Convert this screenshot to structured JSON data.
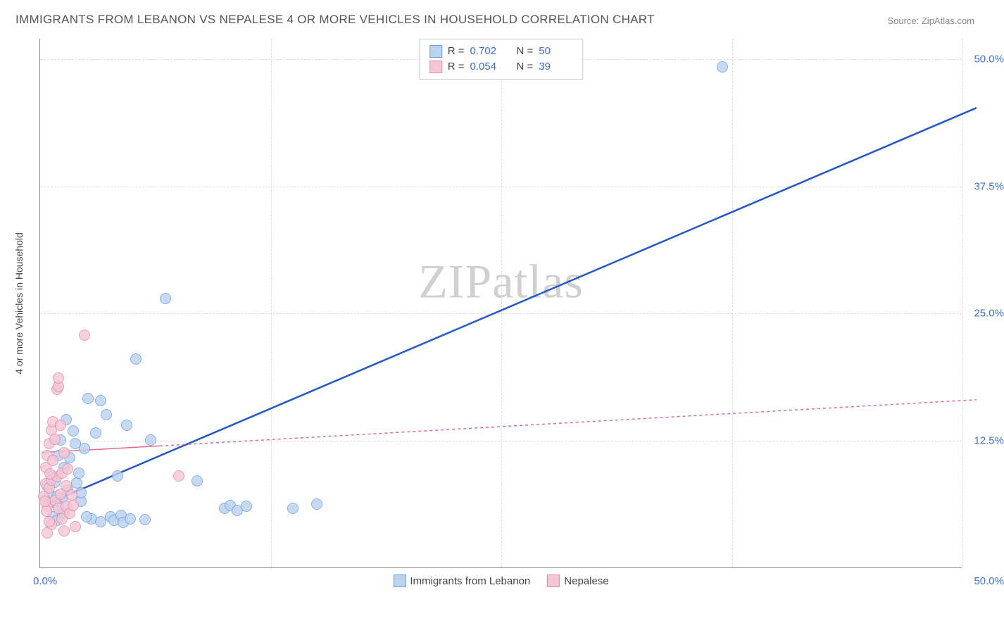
{
  "title": "IMMIGRANTS FROM LEBANON VS NEPALESE 4 OR MORE VEHICLES IN HOUSEHOLD CORRELATION CHART",
  "source": "Source: ZipAtlas.com",
  "watermark_prefix": "ZIP",
  "watermark_suffix": "atlas",
  "ylabel": "4 or more Vehicles in Household",
  "chart": {
    "type": "scatter",
    "xlim": [
      0,
      50
    ],
    "ylim": [
      0,
      52
    ],
    "ytick_values": [
      12.5,
      25.0,
      37.5,
      50.0
    ],
    "ytick_labels": [
      "12.5%",
      "25.0%",
      "37.5%",
      "50.0%"
    ],
    "ytick_color": "#3b6fd6",
    "xtick_left": "0.0%",
    "xtick_right": "50.0%",
    "xtick_color": "#3b6fd6",
    "grid_color": "#dddddd",
    "axis_color": "#888888",
    "background_color": "#ffffff",
    "marker_radius": 8,
    "series": [
      {
        "name": "Immigrants from Lebanon",
        "R": "0.702",
        "N": "50",
        "fill": "#bcd3f0",
        "stroke": "#6a9fde",
        "line_color": "#2158c9",
        "line_width": 2.5,
        "line_dash": "none",
        "line": {
          "x1": 0.3,
          "y1": 6.2,
          "x2": 50.8,
          "y2": 45.2
        },
        "points": [
          [
            0.4,
            8.0
          ],
          [
            0.5,
            7.2
          ],
          [
            0.6,
            9.0
          ],
          [
            0.7,
            6.4
          ],
          [
            0.8,
            8.4
          ],
          [
            0.9,
            7.0
          ],
          [
            1.0,
            11.0
          ],
          [
            1.1,
            12.5
          ],
          [
            1.2,
            6.8
          ],
          [
            1.3,
            9.8
          ],
          [
            1.5,
            7.6
          ],
          [
            1.6,
            10.8
          ],
          [
            1.8,
            13.4
          ],
          [
            1.9,
            12.2
          ],
          [
            1.4,
            14.5
          ],
          [
            2.0,
            8.3
          ],
          [
            2.1,
            9.3
          ],
          [
            2.2,
            6.5
          ],
          [
            2.2,
            7.3
          ],
          [
            2.4,
            11.7
          ],
          [
            2.6,
            16.6
          ],
          [
            2.8,
            4.8
          ],
          [
            3.0,
            13.2
          ],
          [
            3.3,
            16.4
          ],
          [
            3.3,
            4.5
          ],
          [
            3.6,
            15.0
          ],
          [
            3.8,
            5.0
          ],
          [
            4.0,
            4.6
          ],
          [
            4.2,
            9.0
          ],
          [
            4.4,
            5.1
          ],
          [
            4.5,
            4.4
          ],
          [
            4.7,
            14.0
          ],
          [
            4.9,
            4.8
          ],
          [
            5.2,
            20.5
          ],
          [
            5.7,
            4.7
          ],
          [
            6.0,
            12.5
          ],
          [
            6.8,
            26.4
          ],
          [
            8.5,
            8.5
          ],
          [
            10.0,
            5.8
          ],
          [
            10.3,
            6.1
          ],
          [
            10.7,
            5.6
          ],
          [
            11.2,
            6.0
          ],
          [
            13.7,
            5.8
          ],
          [
            15.0,
            6.2
          ],
          [
            37.0,
            49.2
          ],
          [
            1.0,
            6.0
          ],
          [
            0.7,
            5.0
          ],
          [
            0.9,
            4.6
          ],
          [
            1.3,
            5.3
          ],
          [
            2.5,
            5.0
          ]
        ]
      },
      {
        "name": "Nepalese",
        "R": "0.054",
        "N": "39",
        "fill": "#f5c6d4",
        "stroke": "#e48bad",
        "line_color": "#e06a94",
        "line_width": 1.5,
        "line_dash": "4 4",
        "line_solid_end_x": 6.5,
        "line": {
          "x1": 0.1,
          "y1": 11.3,
          "x2": 50.8,
          "y2": 16.5
        },
        "points": [
          [
            0.2,
            7.0
          ],
          [
            0.3,
            8.2
          ],
          [
            0.3,
            9.8
          ],
          [
            0.4,
            11.0
          ],
          [
            0.4,
            6.0
          ],
          [
            0.5,
            12.2
          ],
          [
            0.5,
            7.8
          ],
          [
            0.6,
            13.5
          ],
          [
            0.6,
            8.6
          ],
          [
            0.6,
            4.2
          ],
          [
            0.7,
            10.5
          ],
          [
            0.7,
            14.3
          ],
          [
            0.8,
            6.6
          ],
          [
            0.8,
            12.6
          ],
          [
            0.9,
            17.5
          ],
          [
            0.9,
            8.9
          ],
          [
            1.0,
            17.8
          ],
          [
            1.0,
            18.6
          ],
          [
            1.0,
            5.8
          ],
          [
            1.1,
            14.0
          ],
          [
            1.1,
            7.2
          ],
          [
            1.2,
            9.3
          ],
          [
            1.2,
            4.8
          ],
          [
            1.3,
            11.3
          ],
          [
            1.3,
            3.6
          ],
          [
            1.4,
            8.0
          ],
          [
            1.4,
            6.0
          ],
          [
            1.5,
            9.7
          ],
          [
            1.6,
            5.3
          ],
          [
            1.7,
            7.1
          ],
          [
            1.8,
            6.1
          ],
          [
            1.9,
            4.0
          ],
          [
            0.4,
            3.4
          ],
          [
            2.4,
            22.8
          ],
          [
            7.5,
            9.0
          ],
          [
            0.5,
            4.5
          ],
          [
            0.35,
            5.5
          ],
          [
            0.25,
            6.5
          ],
          [
            0.55,
            9.2
          ]
        ]
      }
    ],
    "legend_top": {
      "R_label": "R  =",
      "N_label": "N  =",
      "label_color": "#444444",
      "value_color": "#3b6fd6"
    },
    "legend_bottom": {
      "items": [
        {
          "label": "Immigrants from Lebanon",
          "fill": "#bcd3f0",
          "stroke": "#6a9fde"
        },
        {
          "label": "Nepalese",
          "fill": "#f5c6d4",
          "stroke": "#e48bad"
        }
      ]
    }
  }
}
